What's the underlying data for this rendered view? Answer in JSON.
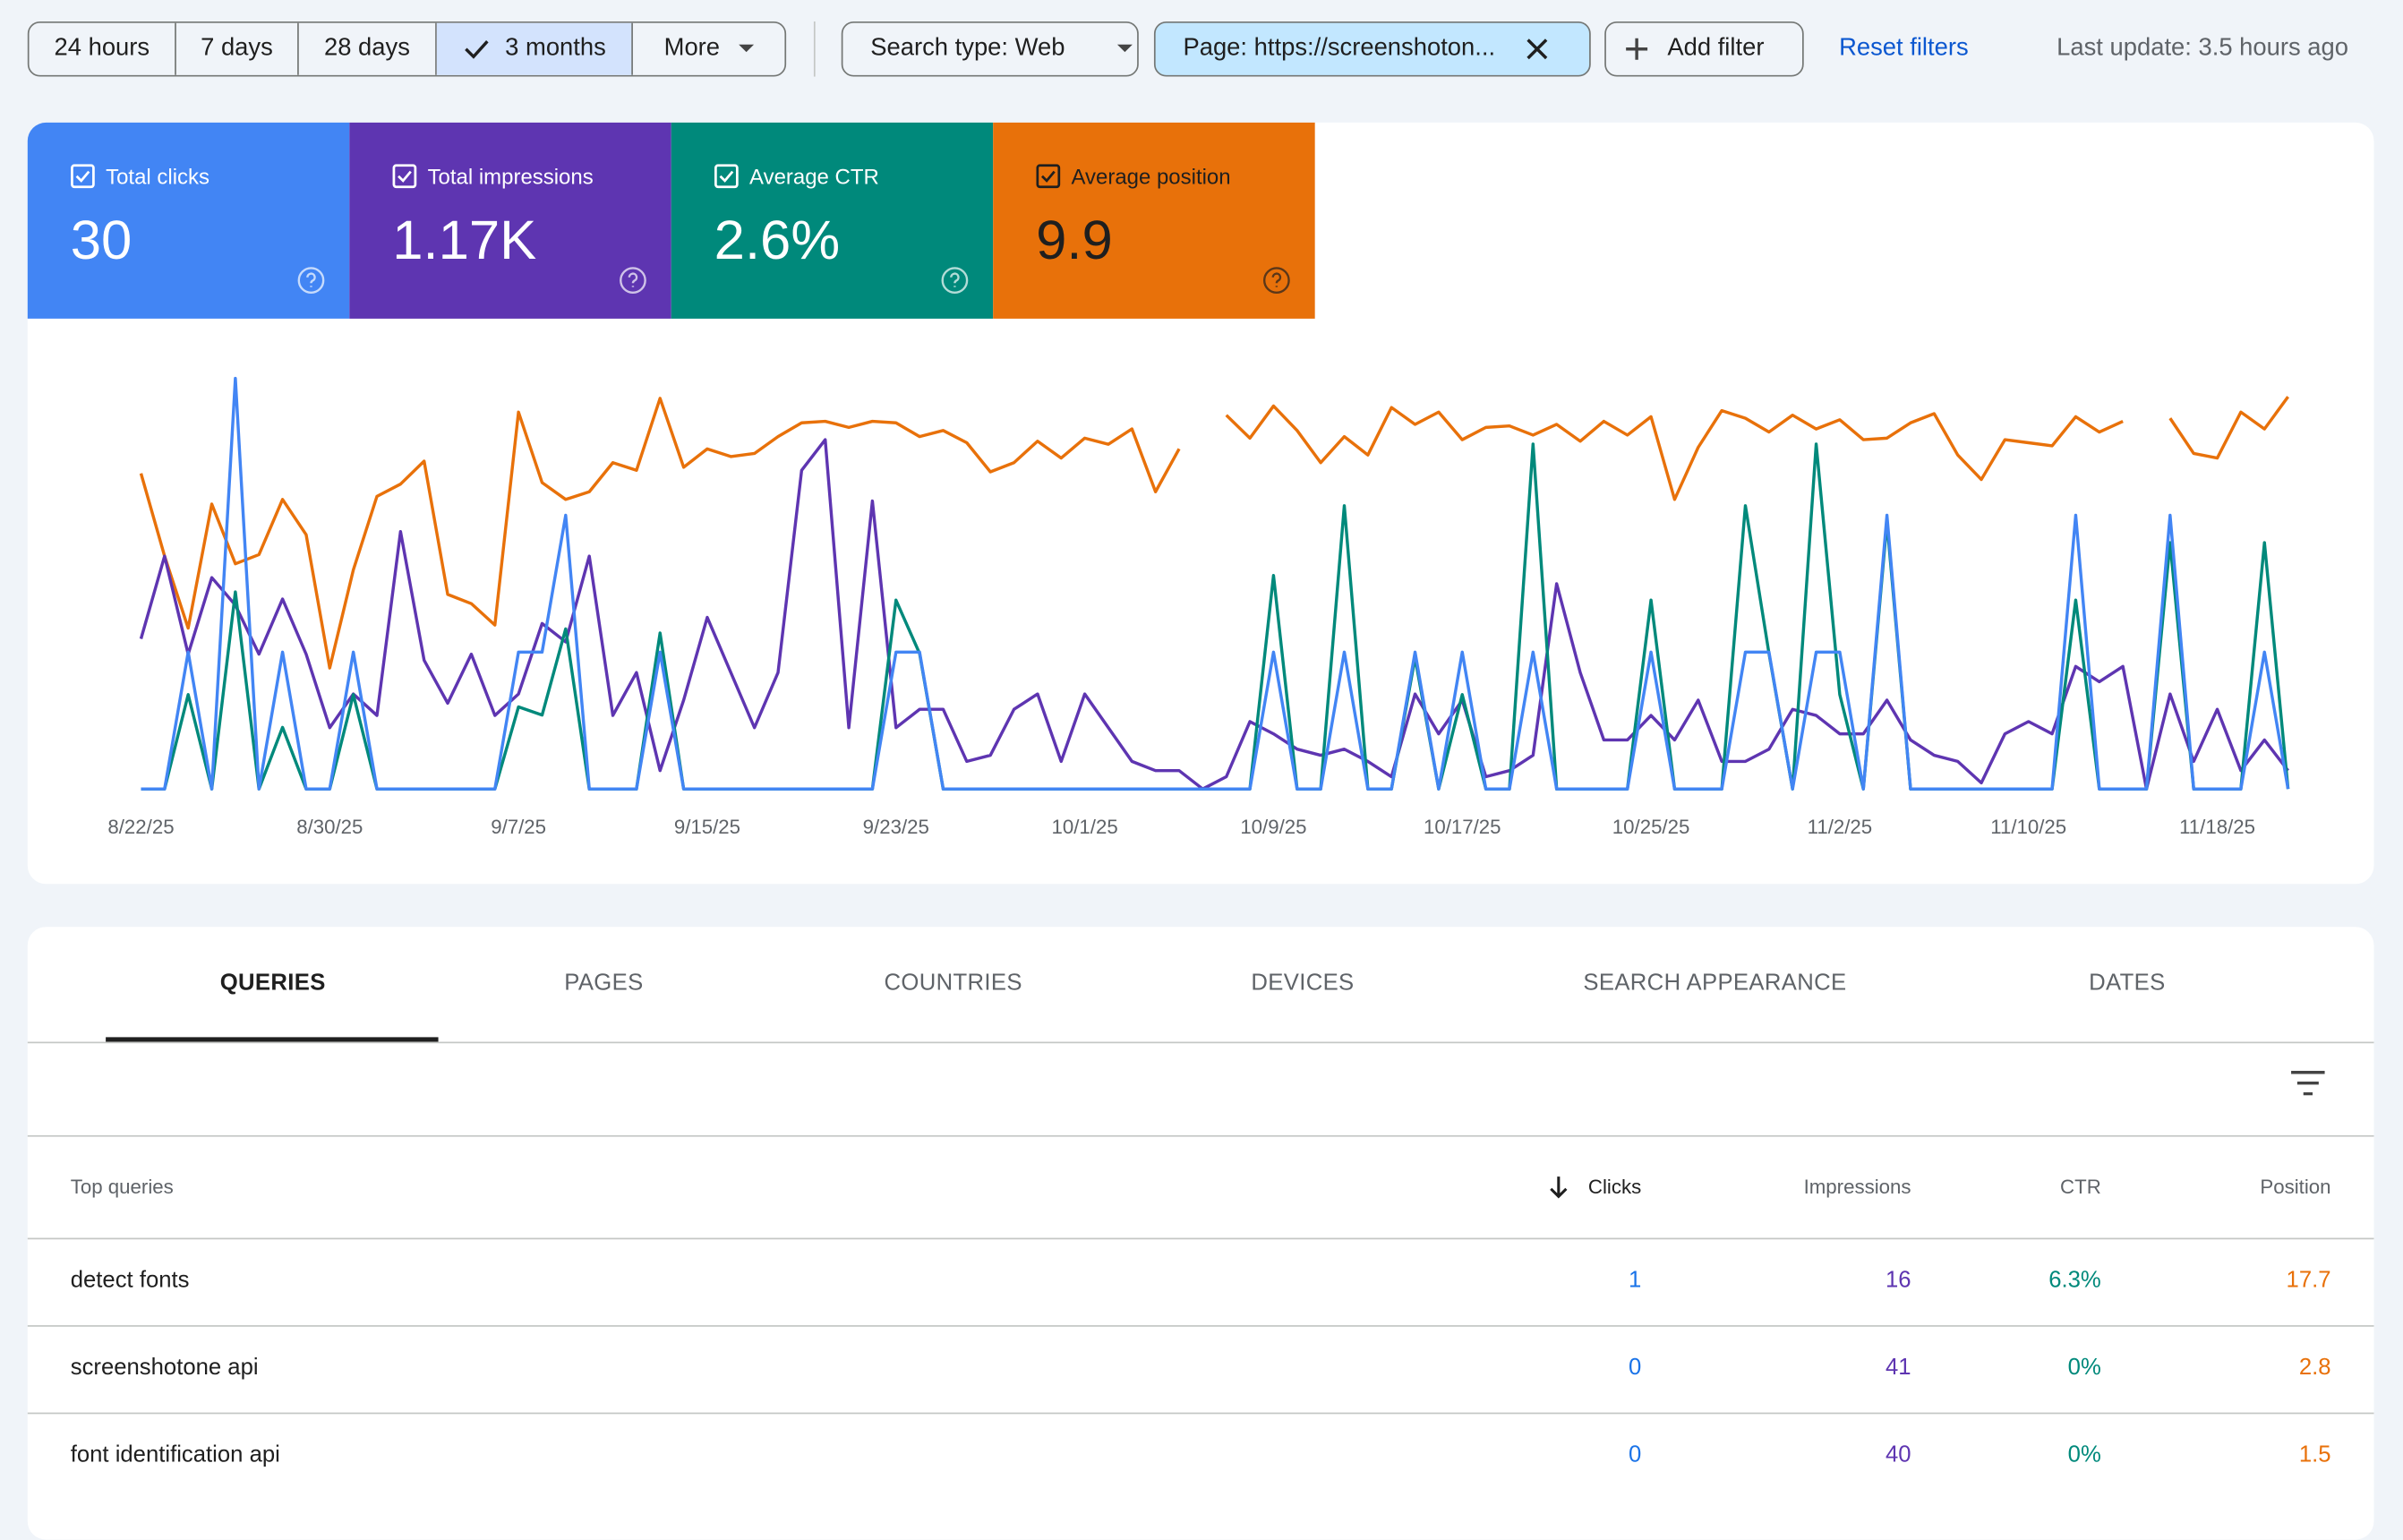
{
  "toolbar": {
    "ranges": [
      "24 hours",
      "7 days",
      "28 days",
      "3 months",
      "More"
    ],
    "search_type": "Search type: Web",
    "page_filter": "Page: https://screenshoton...",
    "add_filter": "Add filter",
    "reset": "Reset filters",
    "last_update": "Last update: 3.5 hours ago"
  },
  "chart_data": {
    "type": "line",
    "x": [
      "8/22/25",
      "8/23/25",
      "8/24/25",
      "8/25/25",
      "8/26/25",
      "8/27/25",
      "8/28/25",
      "8/29/25",
      "8/30/25",
      "8/31/25",
      "9/1/25",
      "9/2/25",
      "9/3/25",
      "9/4/25",
      "9/5/25",
      "9/6/25",
      "9/7/25",
      "9/8/25",
      "9/9/25",
      "9/10/25",
      "9/11/25",
      "9/12/25",
      "9/13/25",
      "9/14/25",
      "9/15/25",
      "9/16/25",
      "9/17/25",
      "9/18/25",
      "9/19/25",
      "9/20/25",
      "9/21/25",
      "9/22/25",
      "9/23/25",
      "9/24/25",
      "9/25/25",
      "9/26/25",
      "9/27/25",
      "9/28/25",
      "9/29/25",
      "9/30/25",
      "10/1/25",
      "10/2/25",
      "10/3/25",
      "10/4/25",
      "10/5/25",
      "10/6/25",
      "10/7/25",
      "10/8/25",
      "10/9/25",
      "10/10/25",
      "10/11/25",
      "10/12/25",
      "10/13/25",
      "10/14/25",
      "10/15/25",
      "10/16/25",
      "10/17/25",
      "10/18/25",
      "10/19/25",
      "10/20/25",
      "10/21/25",
      "10/22/25",
      "10/23/25",
      "10/24/25",
      "10/25/25",
      "10/26/25",
      "10/27/25",
      "10/28/25",
      "10/29/25",
      "10/30/25",
      "10/31/25",
      "11/1/25",
      "11/2/25",
      "11/3/25",
      "11/4/25",
      "11/5/25",
      "11/6/25",
      "11/7/25",
      "11/8/25",
      "11/9/25",
      "11/10/25",
      "11/11/25",
      "11/12/25",
      "11/13/25",
      "11/14/25",
      "11/15/25",
      "11/16/25",
      "11/17/25",
      "11/18/25",
      "11/19/25",
      "11/20/25",
      "11/21/25"
    ],
    "xticks": [
      "8/22/25",
      "8/30/25",
      "9/7/25",
      "9/15/25",
      "9/23/25",
      "10/1/25",
      "10/9/25",
      "10/17/25",
      "10/25/25",
      "11/2/25",
      "11/10/25",
      "11/18/25"
    ],
    "series": [
      {
        "name": "Total clicks",
        "summary": "30",
        "color": "#4285f4",
        "ylim": [
          0,
          3
        ],
        "values": [
          0,
          0,
          1,
          0,
          3,
          0,
          1,
          0,
          0,
          1,
          0,
          0,
          0,
          0,
          0,
          0,
          1,
          1,
          2,
          0,
          0,
          0,
          1,
          0,
          0,
          0,
          0,
          0,
          0,
          0,
          0,
          0,
          1,
          1,
          0,
          0,
          0,
          0,
          0,
          0,
          0,
          0,
          0,
          0,
          0,
          0,
          0,
          0,
          1,
          0,
          0,
          1,
          0,
          0,
          1,
          0,
          1,
          0,
          0,
          1,
          0,
          0,
          0,
          0,
          1,
          0,
          0,
          0,
          1,
          1,
          0,
          1,
          1,
          0,
          2,
          0,
          0,
          0,
          0,
          0,
          0,
          0,
          2,
          0,
          0,
          0,
          2,
          0,
          0,
          0,
          1,
          0
        ]
      },
      {
        "name": "Total impressions",
        "summary": "1.17K",
        "color": "#5e35b1",
        "ylim": [
          0,
          67
        ],
        "values": [
          24.5,
          38,
          22,
          34.5,
          30,
          22,
          31,
          22,
          10,
          15.5,
          12,
          42,
          21,
          14,
          22,
          12,
          15.5,
          27,
          24,
          38,
          12,
          19,
          3,
          14.5,
          28,
          19,
          10,
          19,
          52,
          57,
          10,
          47,
          10,
          13,
          13,
          4.5,
          5.5,
          13,
          15.5,
          4.5,
          15.5,
          10,
          4.5,
          3,
          3,
          0,
          2,
          11,
          9,
          6.5,
          5.5,
          6.5,
          4.5,
          2,
          15.5,
          9,
          14.5,
          2,
          3,
          5.5,
          33.5,
          19,
          8,
          8,
          12,
          8,
          14.5,
          4.5,
          4.5,
          6.5,
          13,
          12,
          9,
          9,
          14.5,
          8,
          5.5,
          4.5,
          1,
          9,
          11,
          9,
          20,
          17.5,
          20,
          0,
          15.5,
          4.5,
          13,
          3,
          8,
          3
        ]
      },
      {
        "name": "Average CTR",
        "summary": "2.6%",
        "color": "#00897b",
        "ylim": [
          0,
          100
        ],
        "values": [
          0,
          0,
          23,
          0,
          48,
          0,
          15,
          0,
          0,
          23,
          0,
          0,
          0,
          0,
          0,
          0,
          20,
          18,
          39,
          0,
          0,
          0,
          38,
          0,
          0,
          0,
          0,
          0,
          0,
          0,
          0,
          0,
          46,
          33,
          0,
          0,
          0,
          0,
          0,
          0,
          0,
          0,
          0,
          0,
          0,
          0,
          0,
          0,
          52,
          0,
          0,
          69,
          0,
          0,
          32,
          0,
          23,
          0,
          0,
          84,
          0,
          0,
          0,
          0,
          46,
          0,
          0,
          0,
          69,
          33,
          0,
          84,
          23,
          0,
          65,
          0,
          0,
          0,
          0,
          0,
          0,
          0,
          46,
          0,
          0,
          0,
          60,
          0,
          0,
          0,
          60,
          0
        ]
      },
      {
        "name": "Average position",
        "summary": "9.9",
        "color": "#e8710a",
        "ylim": [
          26.8,
          0
        ],
        "values": [
          6.2,
          11.6,
          16.3,
          8.2,
          12.1,
          11.5,
          7.9,
          10.2,
          18.9,
          12.5,
          7.7,
          6.9,
          5.4,
          14.1,
          14.7,
          16.1,
          2.2,
          6.8,
          7.9,
          7.4,
          5.5,
          6.0,
          1.3,
          5.8,
          4.6,
          5.1,
          4.9,
          3.8,
          2.9,
          2.8,
          3.2,
          2.8,
          2.9,
          3.8,
          3.4,
          4.2,
          6.1,
          5.5,
          4.1,
          5.2,
          3.9,
          4.3,
          3.3,
          7.4,
          4.6,
          null,
          2.4,
          3.9,
          1.8,
          3.4,
          5.5,
          3.8,
          5.0,
          1.9,
          3.0,
          2.2,
          4.0,
          3.2,
          3.1,
          3.7,
          3.0,
          4.1,
          2.8,
          3.7,
          2.5,
          7.9,
          4.5,
          2.1,
          2.6,
          3.5,
          2.4,
          3.3,
          2.7,
          4.0,
          3.9,
          2.9,
          2.3,
          5.0,
          6.6,
          4.0,
          4.2,
          4.4,
          2.5,
          3.5,
          2.8,
          null,
          2.6,
          4.9,
          5.2,
          2.2,
          3.3,
          1.2
        ]
      }
    ]
  },
  "tabs": [
    "QUERIES",
    "PAGES",
    "COUNTRIES",
    "DEVICES",
    "SEARCH APPEARANCE",
    "DATES"
  ],
  "table": {
    "columns": [
      "Top queries",
      "Clicks",
      "Impressions",
      "CTR",
      "Position"
    ],
    "rows": [
      [
        "detect fonts",
        "1",
        "16",
        "6.3%",
        "17.7"
      ],
      [
        "screenshotone api",
        "0",
        "41",
        "0%",
        "2.8"
      ],
      [
        "font identification api",
        "0",
        "40",
        "0%",
        "1.5"
      ]
    ]
  }
}
